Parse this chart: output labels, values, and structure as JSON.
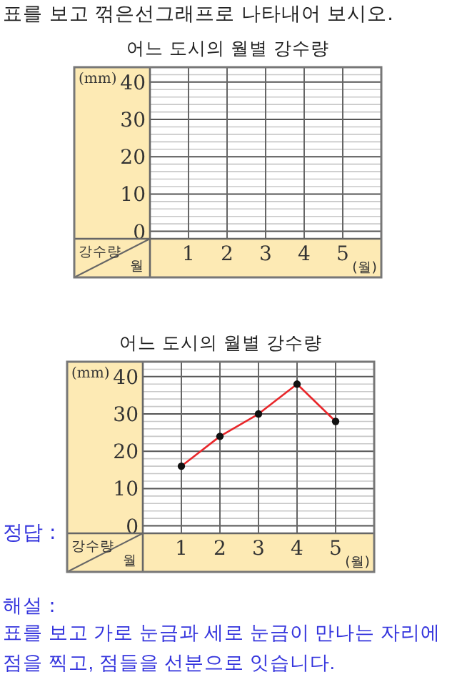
{
  "chart_data": [
    {
      "type": "line",
      "title": "어느 도시의 월별 강수량",
      "ylabel": "(mm)",
      "xlabel": "(월)",
      "categories": [
        "1",
        "2",
        "3",
        "4",
        "5"
      ],
      "values": [
        null,
        null,
        null,
        null,
        null
      ],
      "ylim": [
        -2,
        44
      ],
      "yticks": [
        0,
        {
          "value": 2,
          "label": null
        },
        {
          "value": 4,
          "label": null
        },
        {
          "value": 6,
          "label": null
        },
        {
          "value": 8,
          "label": null
        },
        10,
        {
          "value": 12,
          "label": null
        },
        {
          "value": 14,
          "label": null
        },
        {
          "value": 16,
          "label": null
        },
        {
          "value": 18,
          "label": null
        },
        20,
        {
          "value": 22,
          "label": null
        },
        {
          "value": 24,
          "label": null
        },
        {
          "value": 26,
          "label": null
        },
        {
          "value": 28,
          "label": null
        },
        30,
        {
          "value": 32,
          "label": null
        },
        {
          "value": 34,
          "label": null
        },
        {
          "value": 36,
          "label": null
        },
        {
          "value": 38,
          "label": null
        },
        40,
        {
          "value": 42,
          "label": null
        },
        {
          "value": 44,
          "label": null
        }
      ],
      "grid": true,
      "annotations": [
        "표를 보고 꺾은선그래프로 나타내어 보시오.",
        "강수량",
        "월"
      ]
    },
    {
      "type": "line",
      "title": "어느 도시의 월별 강수량",
      "ylabel": "(mm)",
      "xlabel": "(월)",
      "categories": [
        "1",
        "2",
        "3",
        "4",
        "5"
      ],
      "values": [
        16,
        24,
        30,
        38,
        28
      ],
      "color": "#e8262a",
      "marker": "circle",
      "ylim": [
        -2,
        44
      ],
      "yticks": [
        0,
        {
          "value": 2,
          "label": null
        },
        {
          "value": 4,
          "label": null
        },
        {
          "value": 6,
          "label": null
        },
        {
          "value": 8,
          "label": null
        },
        10,
        {
          "value": 12,
          "label": null
        },
        {
          "value": 14,
          "label": null
        },
        {
          "value": 16,
          "label": null
        },
        {
          "value": 18,
          "label": null
        },
        20,
        {
          "value": 22,
          "label": null
        },
        {
          "value": 24,
          "label": null
        },
        {
          "value": 26,
          "label": null
        },
        {
          "value": 28,
          "label": null
        },
        30,
        {
          "value": 32,
          "label": null
        },
        {
          "value": 34,
          "label": null
        },
        {
          "value": 36,
          "label": null
        },
        {
          "value": 38,
          "label": null
        },
        40,
        {
          "value": 42,
          "label": null
        },
        {
          "value": 44,
          "label": null
        }
      ],
      "grid": true,
      "annotations": [
        "정답 :",
        "강수량",
        "월",
        "해설 :",
        "표를 보고 가로 눈금과 세로 눈금이 만나는 자리에 점을 찍고, 점들을 선분으로 잇습니다."
      ]
    }
  ]
}
